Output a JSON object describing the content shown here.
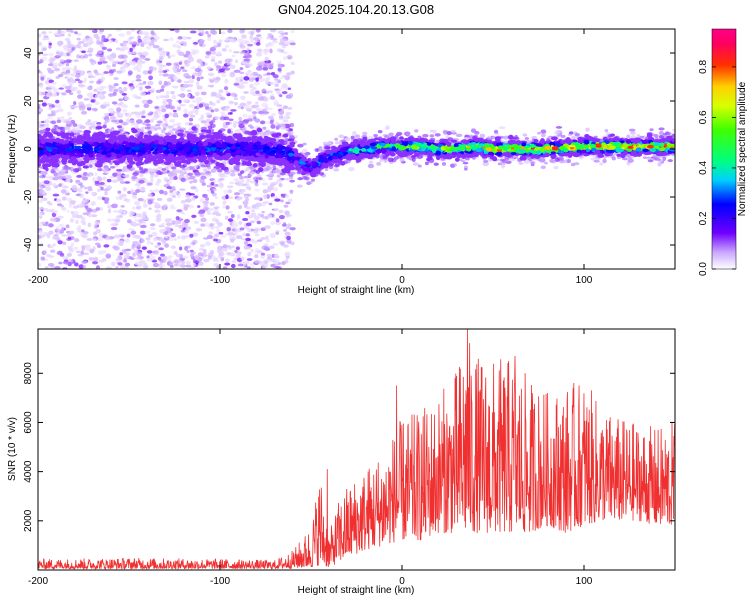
{
  "figure": {
    "title": "GN04.2025.104.20.13.G08"
  },
  "chart_data": [
    {
      "type": "heatmap",
      "xlabel": "Height of straight line (km)",
      "ylabel": "Frequency (Hz)",
      "xlim": [
        -200,
        150
      ],
      "ylim": [
        -50,
        50
      ],
      "x_ticks": [
        -200,
        -100,
        0,
        100
      ],
      "x_tick_labels": [
        "-200",
        "-100",
        "0",
        "100"
      ],
      "y_ticks": [
        -40,
        -20,
        0,
        20,
        40
      ],
      "y_tick_labels": [
        "-40",
        "-20",
        "0",
        "20",
        "40"
      ],
      "grid": false,
      "colorbar": {
        "label": "Normalized spectral amplitude",
        "range": [
          0,
          0.95
        ],
        "ticks": [
          0,
          0.2,
          0.4,
          0.6,
          0.8
        ],
        "tick_labels": [
          "0.0",
          "0.2",
          "0.4",
          "0.6",
          "0.8"
        ],
        "colormap": "rainbow (white → violet → blue → cyan → green → yellow → red → magenta)"
      },
      "ridge_center_hz": {
        "x": [
          -200,
          -180,
          -160,
          -140,
          -120,
          -100,
          -80,
          -65,
          -60,
          -55,
          -50,
          -45,
          -40,
          -30,
          -20,
          -10,
          0,
          10,
          20,
          30,
          40,
          50,
          60,
          80,
          100,
          120,
          150
        ],
        "y": [
          0,
          0,
          0,
          0,
          0,
          0,
          0,
          -1,
          -3,
          -6,
          -8,
          -5,
          -3,
          -1,
          0,
          1,
          1,
          1,
          0,
          0,
          1,
          0,
          0,
          0,
          1,
          1,
          1
        ]
      },
      "ridge_amplitude": {
        "x": [
          -200,
          -100,
          -60,
          -40,
          -20,
          0,
          50,
          100,
          150
        ],
        "y": [
          0.3,
          0.3,
          0.3,
          0.35,
          0.5,
          0.6,
          0.8,
          0.85,
          0.85
        ]
      },
      "scatter_region_x": [
        -200,
        -60
      ]
    },
    {
      "type": "line",
      "xlabel": "Height of straight line (km)",
      "ylabel": "SNR (10 * v/v)",
      "xlim": [
        -200,
        150
      ],
      "ylim": [
        0,
        9800
      ],
      "x_ticks": [
        -200,
        -100,
        0,
        100
      ],
      "x_tick_labels": [
        "-200",
        "-100",
        "0",
        "100"
      ],
      "y_ticks": [
        2000,
        4000,
        6000,
        8000
      ],
      "y_tick_labels": [
        "2000",
        "4000",
        "6000",
        "8000"
      ],
      "grid": false,
      "series_color": "#f03030",
      "envelope": {
        "x": [
          -200,
          -150,
          -100,
          -70,
          -60,
          -50,
          -45,
          -40,
          -35,
          -30,
          -20,
          -10,
          0,
          10,
          20,
          30,
          35,
          40,
          50,
          60,
          70,
          80,
          90,
          100,
          110,
          120,
          130,
          140,
          150
        ],
        "min": [
          50,
          50,
          50,
          50,
          60,
          100,
          200,
          100,
          300,
          500,
          800,
          1000,
          1200,
          1200,
          1500,
          1500,
          1500,
          1500,
          1500,
          1500,
          1500,
          1800,
          1500,
          1800,
          2000,
          2000,
          2000,
          1800,
          1800
        ],
        "max": [
          450,
          500,
          450,
          400,
          800,
          1800,
          4100,
          1500,
          2800,
          3500,
          4200,
          5000,
          6200,
          6500,
          7200,
          8200,
          9800,
          8800,
          8600,
          8700,
          7800,
          7300,
          7500,
          7800,
          6600,
          6200,
          6000,
          5800,
          6100
        ]
      },
      "peaks": [
        {
          "x": -41,
          "y": 4100
        },
        {
          "x": -3,
          "y": 7500
        },
        {
          "x": 36,
          "y": 9800
        },
        {
          "x": 62,
          "y": 8700
        }
      ]
    }
  ]
}
